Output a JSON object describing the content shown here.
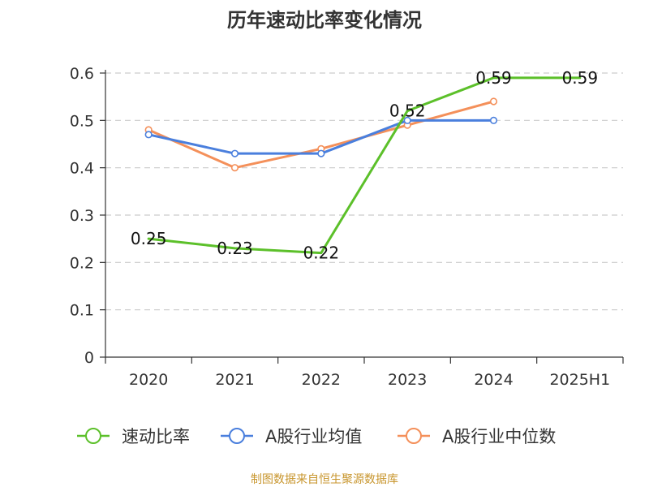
{
  "chart_data": {
    "type": "line",
    "title": "历年速动比率变化情况",
    "categories": [
      "2020",
      "2021",
      "2022",
      "2023",
      "2024",
      "2025H1"
    ],
    "ylim": [
      0,
      0.6
    ],
    "yticks": [
      "0",
      "0.1",
      "0.2",
      "0.3",
      "0.4",
      "0.5",
      "0.6"
    ],
    "xlabel": "",
    "ylabel": "",
    "grid": true,
    "legend_position": "bottom",
    "series": [
      {
        "name": "速动比率",
        "color": "#5cc02a",
        "values": [
          0.25,
          0.23,
          0.22,
          0.52,
          0.59,
          0.59
        ],
        "labels": [
          "0.25",
          "0.23",
          "0.22",
          "0.52",
          "0.59",
          "0.59"
        ]
      },
      {
        "name": "A股行业均值",
        "color": "#4a7fdd",
        "values": [
          0.47,
          0.43,
          0.43,
          0.5,
          0.5,
          null
        ]
      },
      {
        "name": "A股行业中位数",
        "color": "#f4905a",
        "values": [
          0.48,
          0.4,
          0.44,
          0.49,
          0.54,
          null
        ]
      }
    ],
    "source": "制图数据来自恒生聚源数据库"
  }
}
